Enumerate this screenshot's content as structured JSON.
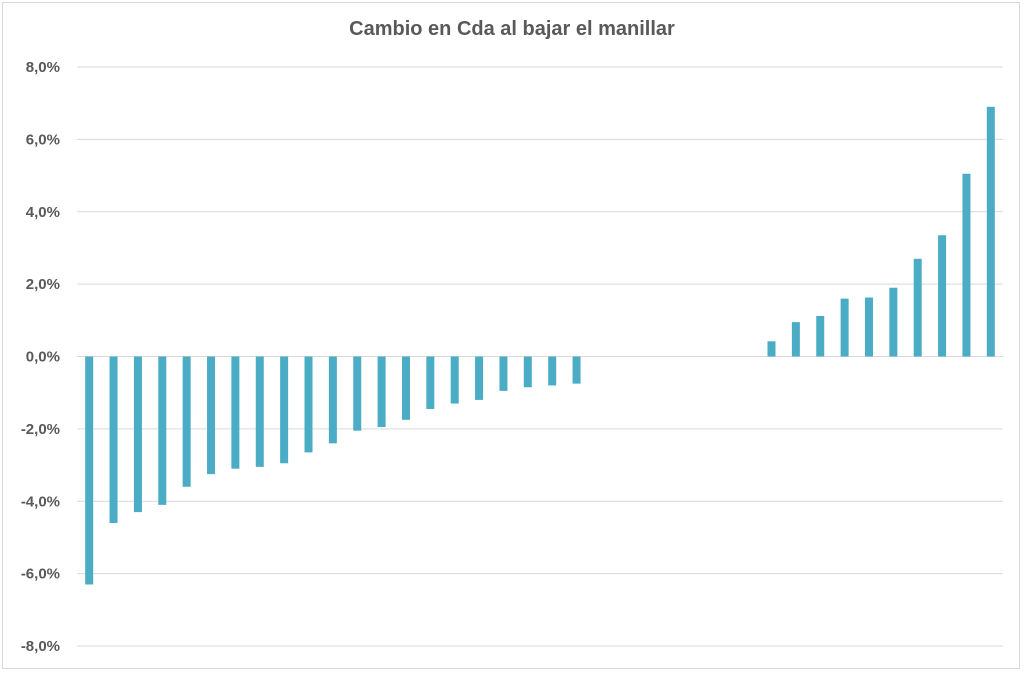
{
  "chart_data": {
    "type": "bar",
    "title": "Cambio en Cda al bajar el manillar",
    "xlabel": "",
    "ylabel": "",
    "ylim": [
      -8.0,
      8.0
    ],
    "y_ticks": [
      8.0,
      6.0,
      4.0,
      2.0,
      0.0,
      -2.0,
      -4.0,
      -6.0,
      -8.0
    ],
    "y_tick_labels": [
      "8,0%",
      "6,0%",
      "4,0%",
      "2,0%",
      "0,0%",
      "-2,0%",
      "-4,0%",
      "-6,0%",
      "-8,0%"
    ],
    "grid": true,
    "legend": "none",
    "bar_color": "#4BACC6",
    "categories_count": 38,
    "values": [
      -6.3,
      -4.6,
      -4.3,
      -4.1,
      -3.6,
      -3.25,
      -3.1,
      -3.05,
      -2.95,
      -2.65,
      -2.4,
      -2.05,
      -1.95,
      -1.75,
      -1.45,
      -1.3,
      -1.2,
      -0.95,
      -0.85,
      -0.8,
      -0.75,
      null,
      null,
      null,
      null,
      null,
      null,
      null,
      0.42,
      0.95,
      1.12,
      1.6,
      1.63,
      1.9,
      2.7,
      3.35,
      5.05,
      6.9
    ]
  }
}
